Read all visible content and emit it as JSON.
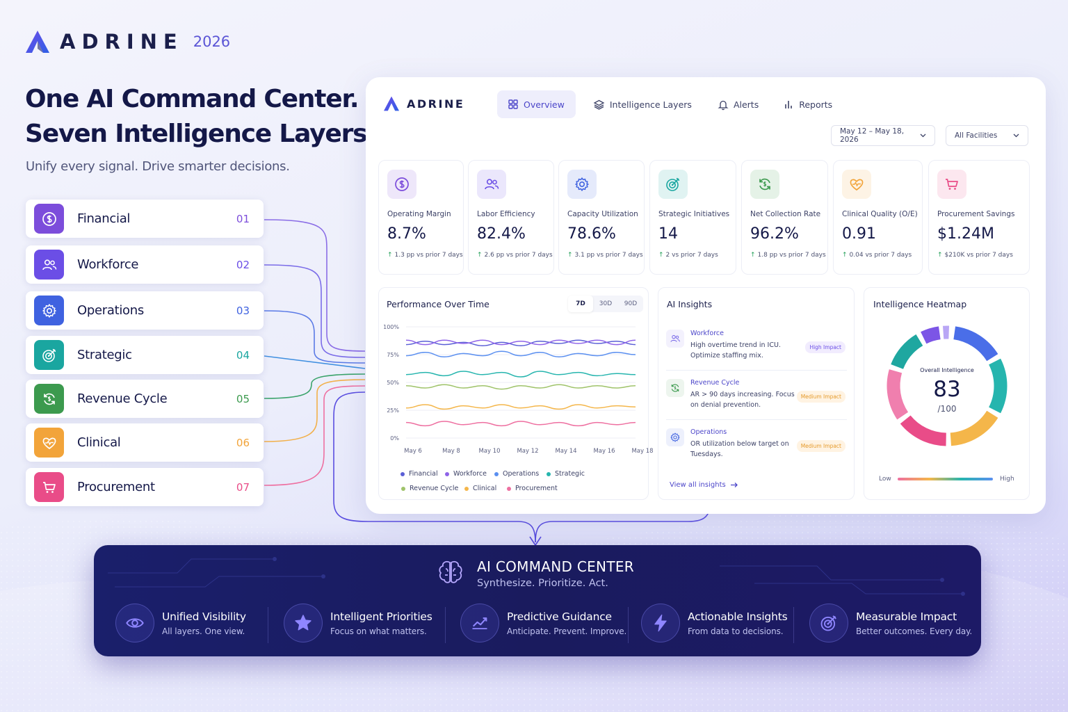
{
  "brand": {
    "name": "ADRINE",
    "year": "2026"
  },
  "hero": {
    "title_line1": "One AI Command Center.",
    "title_line2": "Seven Intelligence Layers.",
    "subtitle": "Unify every signal. Drive smarter decisions."
  },
  "layers": [
    {
      "label": "Financial",
      "num": "01",
      "icon": "dollar-icon",
      "color": "#7c4ddb"
    },
    {
      "label": "Workforce",
      "num": "02",
      "icon": "people-icon",
      "color": "#6b4ee6"
    },
    {
      "label": "Operations",
      "num": "03",
      "icon": "gear-icon",
      "color": "#3f62e0"
    },
    {
      "label": "Strategic",
      "num": "04",
      "icon": "target-icon",
      "color": "#1aa6a0"
    },
    {
      "label": "Revenue Cycle",
      "num": "05",
      "icon": "cycle-icon",
      "color": "#3c9a4e"
    },
    {
      "label": "Clinical",
      "num": "06",
      "icon": "heart-icon",
      "color": "#f2a43a"
    },
    {
      "label": "Procurement",
      "num": "07",
      "icon": "cart-icon",
      "color": "#e94c88"
    }
  ],
  "dashboard": {
    "brand": "ADRINE",
    "tabs": [
      {
        "label": "Overview",
        "icon": "grid-icon"
      },
      {
        "label": "Intelligence Layers",
        "icon": "layers-icon"
      },
      {
        "label": "Alerts",
        "icon": "bell-icon"
      },
      {
        "label": "Reports",
        "icon": "bars-icon"
      }
    ],
    "date_range": "May 12 – May 18, 2026",
    "facility": "All Facilities",
    "kpis": [
      {
        "label": "Operating Margin",
        "value": "8.7%",
        "delta": "1.3 pp vs prior 7 days",
        "icon": "dollar-icon"
      },
      {
        "label": "Labor Efficiency",
        "value": "82.4%",
        "delta": "2.6 pp vs prior 7 days",
        "icon": "people-icon"
      },
      {
        "label": "Capacity Utilization",
        "value": "78.6%",
        "delta": "3.1 pp vs prior 7 days",
        "icon": "gear-icon"
      },
      {
        "label": "Strategic Initiatives",
        "value": "14",
        "delta": "2 vs prior 7 days",
        "icon": "target-icon"
      },
      {
        "label": "Net Collection Rate",
        "value": "96.2%",
        "delta": "1.8 pp vs prior 7 days",
        "icon": "cycle-icon"
      },
      {
        "label": "Clinical Quality (O/E)",
        "value": "0.91",
        "delta": "0.04 vs prior 7 days",
        "icon": "heart-icon"
      },
      {
        "label": "Procurement Savings",
        "value": "$1.24M",
        "delta": "$210K vs prior 7 days",
        "icon": "cart-icon"
      }
    ],
    "performance": {
      "title": "Performance Over Time",
      "ranges": [
        "7D",
        "30D",
        "90D"
      ],
      "active_range": "7D"
    },
    "insights": {
      "title": "AI Insights",
      "items": [
        {
          "layer": "Workforce",
          "text": "High overtime trend in ICU. Optimize staffing mix.",
          "impact": "High Impact",
          "icon": "people-icon"
        },
        {
          "layer": "Revenue Cycle",
          "text": "AR > 90 days increasing. Focus on denial prevention.",
          "impact": "Medium Impact",
          "icon": "cycle-icon"
        },
        {
          "layer": "Operations",
          "text": "OR utilization below target on Tuesdays.",
          "impact": "Medium Impact",
          "icon": "gear-icon"
        }
      ],
      "link": "View all insights"
    },
    "heatmap": {
      "title": "Intelligence Heatmap",
      "caption": "Overall Intelligence",
      "score": "83",
      "out_of": "/100",
      "low": "Low",
      "high": "High"
    }
  },
  "chart_data": {
    "type": "line",
    "x": [
      "May 6",
      "May 7",
      "May 8",
      "May 9",
      "May 10",
      "May 11",
      "May 12",
      "May 13",
      "May 14",
      "May 15",
      "May 16",
      "May 17",
      "May 18"
    ],
    "x_tick_labels": [
      "May 6",
      "May 8",
      "May 10",
      "May 12",
      "May 14",
      "May 16",
      "May 18"
    ],
    "y_tick_labels": [
      "100%",
      "75%",
      "50%",
      "25%",
      "0%"
    ],
    "ylim": [
      0,
      100
    ],
    "grid": true,
    "legend_position": "bottom",
    "series": [
      {
        "name": "Financial",
        "color": "#5b5fd6",
        "values": [
          84,
          87,
          84,
          86,
          83,
          86,
          83,
          87,
          85,
          88,
          85,
          87,
          84
        ]
      },
      {
        "name": "Workforce",
        "color": "#8e63e8",
        "values": [
          88,
          84,
          88,
          85,
          88,
          84,
          87,
          84,
          88,
          85,
          88,
          84,
          88
        ]
      },
      {
        "name": "Operations",
        "color": "#5a8ff0",
        "values": [
          74,
          77,
          73,
          76,
          74,
          78,
          74,
          77,
          73,
          76,
          74,
          77,
          75
        ]
      },
      {
        "name": "Strategic",
        "color": "#26b5ae",
        "values": [
          57,
          59,
          56,
          60,
          57,
          59,
          55,
          60,
          57,
          59,
          56,
          58,
          57
        ]
      },
      {
        "name": "Revenue Cycle",
        "color": "#9fc36a",
        "values": [
          47,
          45,
          48,
          45,
          47,
          44,
          47,
          45,
          48,
          45,
          47,
          45,
          47
        ]
      },
      {
        "name": "Clinical",
        "color": "#f4b64a",
        "values": [
          27,
          30,
          26,
          29,
          27,
          30,
          27,
          29,
          26,
          30,
          27,
          29,
          28
        ]
      },
      {
        "name": "Procurement",
        "color": "#ee6fa0",
        "values": [
          14,
          11,
          15,
          12,
          14,
          11,
          15,
          12,
          14,
          11,
          14,
          12,
          14
        ]
      }
    ]
  },
  "command": {
    "title": "AI COMMAND CENTER",
    "subtitle": "Synthesize. Prioritize. Act.",
    "features": [
      {
        "title": "Unified Visibility",
        "desc": "All layers. One view.",
        "icon": "eye-icon"
      },
      {
        "title": "Intelligent Priorities",
        "desc": "Focus on what matters.",
        "icon": "star-icon"
      },
      {
        "title": "Predictive Guidance",
        "desc": "Anticipate. Prevent. Improve.",
        "icon": "trend-icon"
      },
      {
        "title": "Actionable Insights",
        "desc": "From data to decisions.",
        "icon": "bolt-icon"
      },
      {
        "title": "Measurable Impact",
        "desc": "Better outcomes. Every day.",
        "icon": "target-icon"
      }
    ]
  }
}
